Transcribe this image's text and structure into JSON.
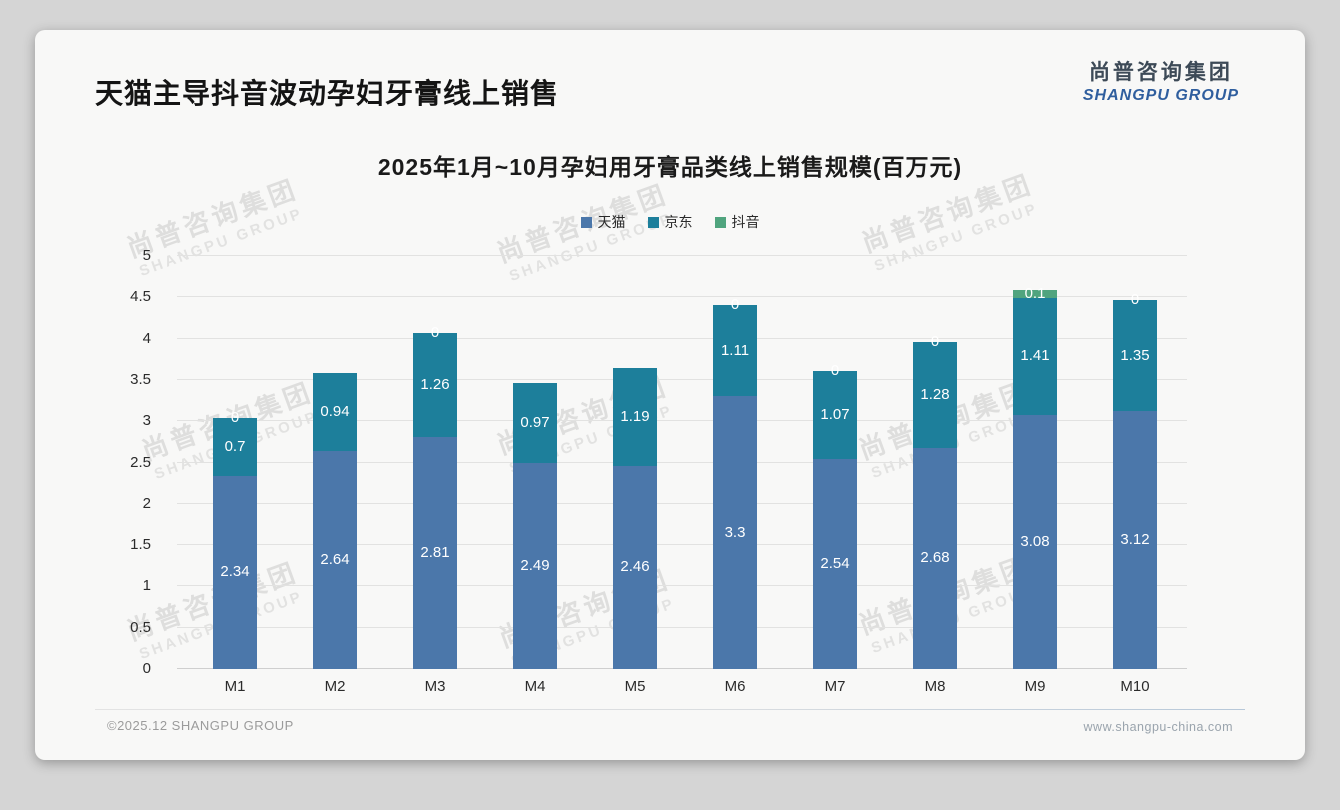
{
  "page": {
    "title": "天猫主导抖音波动孕妇牙膏线上销售",
    "logo": {
      "cn": "尚普咨询集团",
      "en": "SHANGPU GROUP"
    },
    "watermark": {
      "cn": "尚普咨询集团",
      "en": "SHANGPU GROUP"
    },
    "footer": {
      "left": "©2025.12 SHANGPU GROUP",
      "right": "www.shangpu-china.com"
    }
  },
  "chart_data": {
    "type": "bar",
    "stacked": true,
    "title": "2025年1月~10月孕妇用牙膏品类线上销售规模(百万元)",
    "xlabel": "",
    "ylabel": "",
    "ylim": [
      0,
      5
    ],
    "yticks": [
      "0",
      "0.5",
      "1",
      "1.5",
      "2",
      "2.5",
      "3",
      "3.5",
      "4",
      "4.5",
      "5"
    ],
    "grid": true,
    "legend_position": "top",
    "categories": [
      "M1",
      "M2",
      "M3",
      "M4",
      "M5",
      "M6",
      "M7",
      "M8",
      "M9",
      "M10"
    ],
    "series": [
      {
        "name": "天猫",
        "color": "#4b77aa",
        "values": [
          2.34,
          2.64,
          2.81,
          2.49,
          2.46,
          3.3,
          2.54,
          2.68,
          3.08,
          3.12
        ],
        "labels": [
          "2.34",
          "2.64",
          "2.81",
          "2.49",
          "2.46",
          "3.3",
          "2.54",
          "2.68",
          "3.08",
          "3.12"
        ]
      },
      {
        "name": "京东",
        "color": "#1d7f9b",
        "values": [
          0.7,
          0.94,
          1.26,
          0.97,
          1.19,
          1.11,
          1.07,
          1.28,
          1.41,
          1.35
        ],
        "labels": [
          "0.7",
          "0.94",
          "1.26",
          "0.97",
          "1.19",
          "1.11",
          "1.07",
          "1.28",
          "1.41",
          "1.35"
        ]
      },
      {
        "name": "抖音",
        "color": "#50a47e",
        "values": [
          0,
          0,
          0,
          0,
          0,
          0,
          0,
          0,
          0.1,
          0
        ],
        "labels": [
          "0",
          "",
          "0",
          "",
          "",
          "0",
          "0",
          "0",
          "0.1",
          "0"
        ]
      }
    ]
  }
}
